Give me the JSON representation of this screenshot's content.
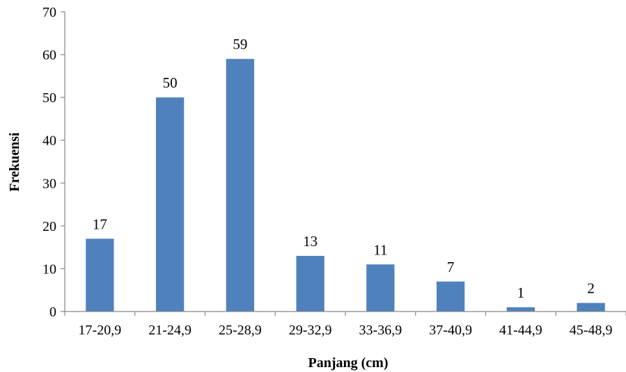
{
  "chart_data": {
    "type": "bar",
    "categories": [
      "17-20,9",
      "21-24,9",
      "25-28,9",
      "29-32,9",
      "33-36,9",
      "37-40,9",
      "41-44,9",
      "45-48,9"
    ],
    "values": [
      17,
      50,
      59,
      13,
      11,
      7,
      1,
      2
    ],
    "data_labels": [
      "17",
      "50",
      "59",
      "13",
      "11",
      "7",
      "1",
      "2"
    ],
    "xlabel": "Panjang (cm)",
    "ylabel": "Frekuensi",
    "ylim": [
      0,
      70
    ],
    "yticks": [
      0,
      10,
      20,
      30,
      40,
      50,
      60,
      70
    ],
    "ytick_labels": [
      "0",
      "10",
      "20",
      "30",
      "40",
      "50",
      "60",
      "70"
    ],
    "grid": false,
    "legend": "none",
    "bar_color": "#4F81BD"
  }
}
